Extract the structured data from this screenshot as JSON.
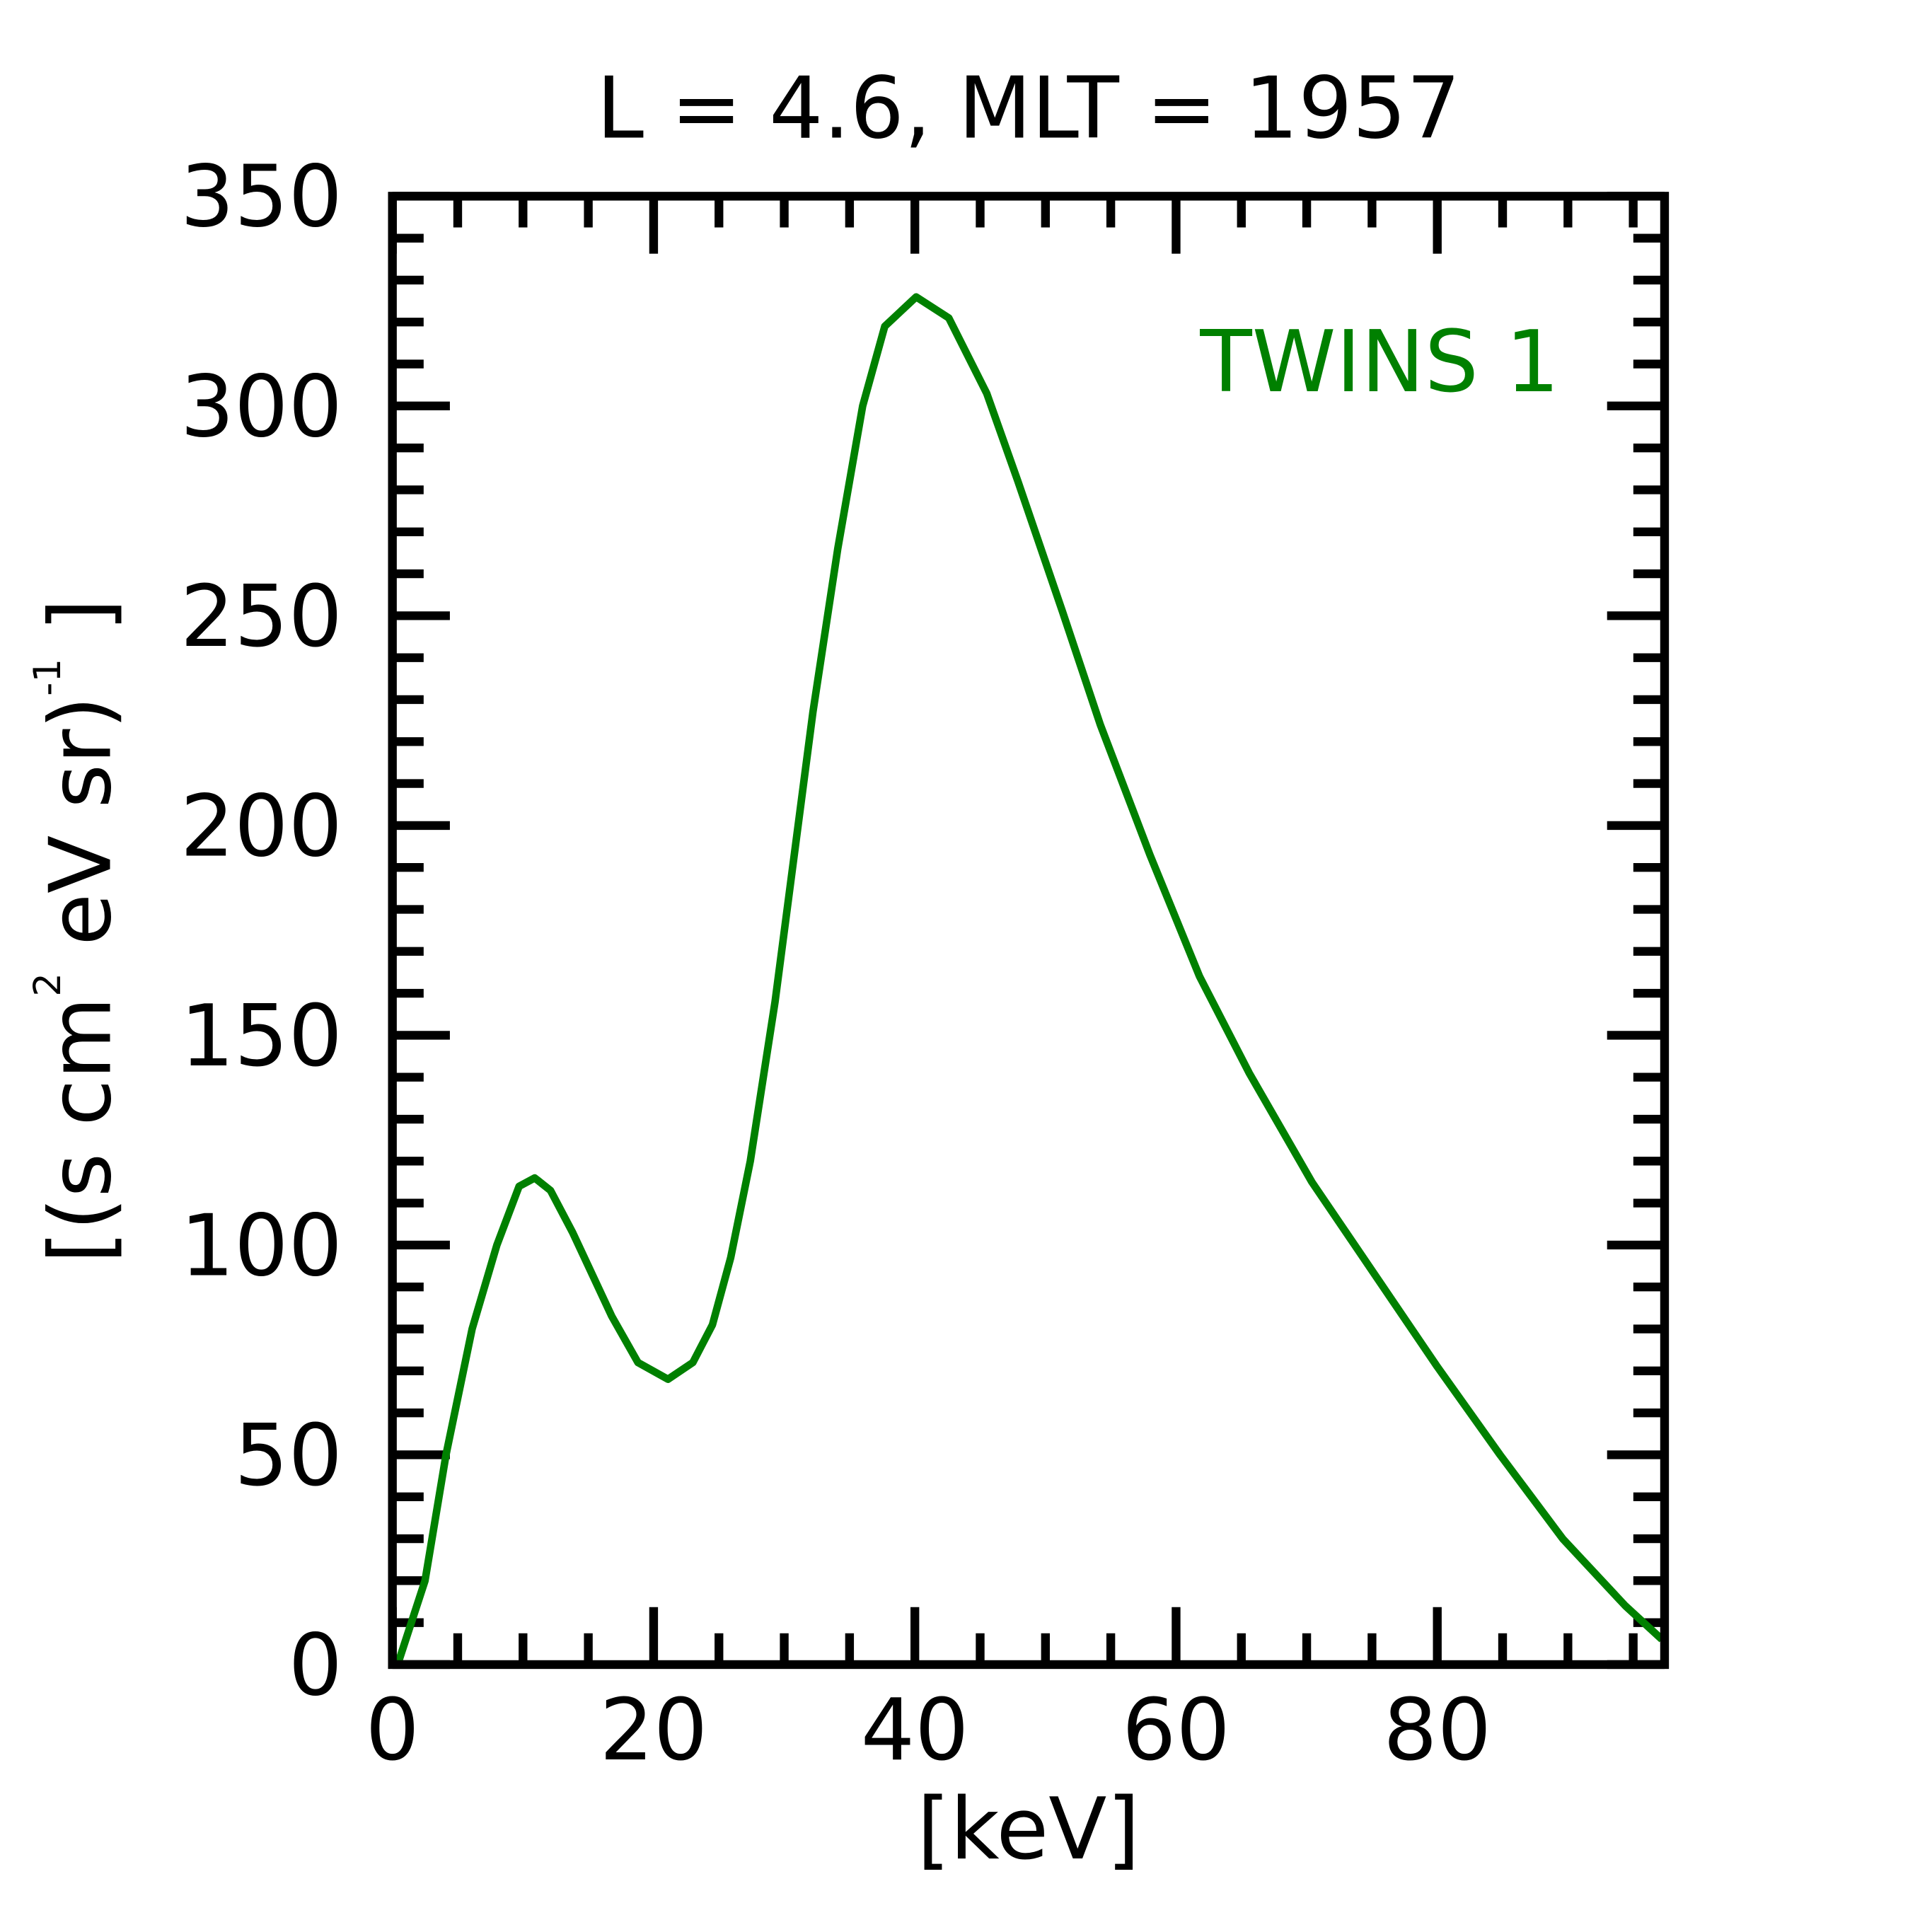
{
  "chart_data": {
    "type": "line",
    "title": "L =  4.6, MLT = 1957",
    "xlabel": "[keV]",
    "ylabel_parts": [
      "[(s cm",
      "2",
      " eV sr)",
      "-1",
      " ]"
    ],
    "xlim": [
      0,
      97.4
    ],
    "ylim": [
      0,
      350
    ],
    "xticks": [
      0,
      20,
      40,
      60,
      80
    ],
    "xtick_labels": [
      "0",
      "20",
      "40",
      "60",
      "80"
    ],
    "yticks": [
      0,
      50,
      100,
      150,
      200,
      250,
      300,
      350
    ],
    "ytick_labels": [
      "0",
      "50",
      "100",
      "150",
      "200",
      "250",
      "300",
      "350"
    ],
    "x_minor_step": 5,
    "y_minor_step": 10,
    "grid": false,
    "legend_placement": "top-right",
    "series": [
      {
        "name": "TWINS 1",
        "color": "#008000",
        "x": [
          0.4,
          2.5,
          4.1,
          6.1,
          8.0,
          9.7,
          10.9,
          12.1,
          13.8,
          16.8,
          18.8,
          21.1,
          23.0,
          24.5,
          25.9,
          27.4,
          29.3,
          32.2,
          34.1,
          36.0,
          37.7,
          40.1,
          42.6,
          45.5,
          47.9,
          51.3,
          54.2,
          58.0,
          61.8,
          65.6,
          70.4,
          75.2,
          80.0,
          84.8,
          89.6,
          94.4,
          97.2
        ],
        "y": [
          0,
          20,
          50,
          80,
          100,
          114,
          116,
          113,
          103,
          83,
          72,
          68,
          72,
          81,
          97,
          120,
          158,
          227,
          266,
          300,
          319,
          326,
          321,
          303,
          282,
          251,
          224,
          193,
          164,
          141,
          115,
          93,
          71,
          50,
          30,
          14,
          6
        ]
      }
    ]
  }
}
